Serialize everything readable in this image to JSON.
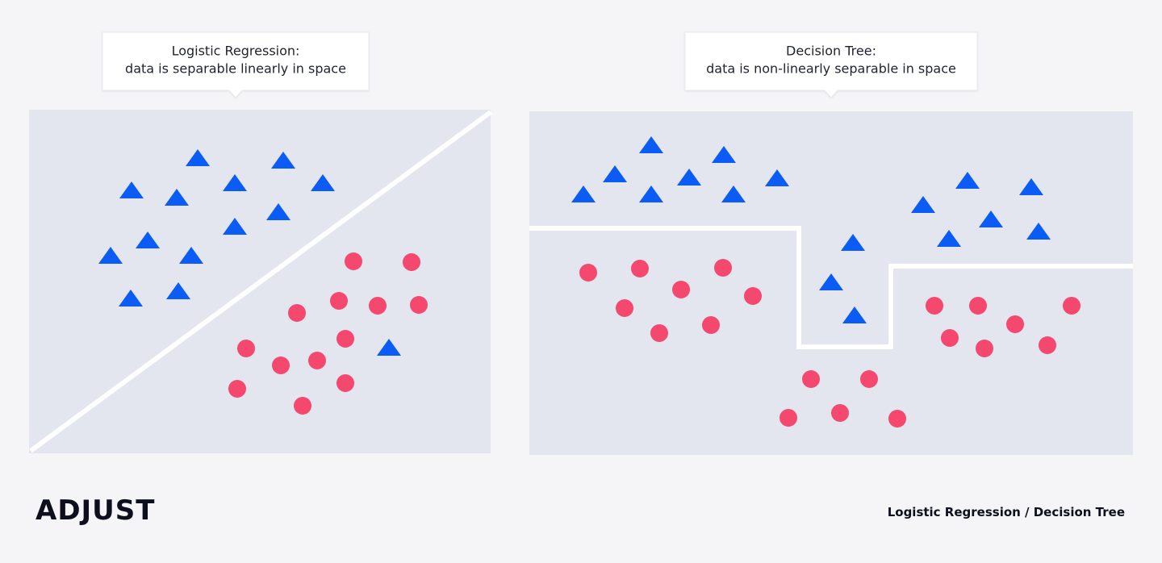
{
  "left_panel": {
    "callout": [
      "Logistic Regression:",
      "data is separable linearly in space"
    ]
  },
  "right_panel": {
    "callout": [
      "Decision Tree:",
      "data is non-linearly separable in space"
    ]
  },
  "footer": {
    "logo": "ADJUST",
    "caption": "Logistic Regression / Decision Tree"
  }
}
